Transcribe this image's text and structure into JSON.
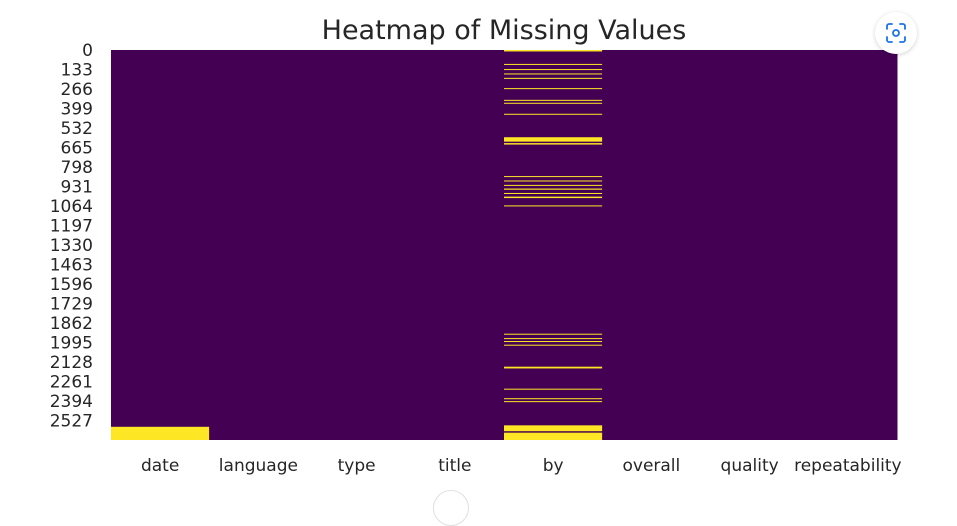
{
  "chart_data": {
    "type": "heatmap",
    "title": "Heatmap of Missing Values",
    "columns": [
      "date",
      "language",
      "type",
      "title",
      "by",
      "overall",
      "quality",
      "repeatability"
    ],
    "y_ticks": [
      "0",
      "133",
      "266",
      "399",
      "532",
      "665",
      "798",
      "931",
      "1064",
      "1197",
      "1330",
      "1463",
      "1596",
      "1729",
      "1862",
      "1995",
      "2128",
      "2261",
      "2394",
      "2527"
    ],
    "n_rows": 2660,
    "colors": {
      "present": "#440154",
      "missing": "#fde725"
    },
    "missing_ranges": {
      "date": [
        [
          2570,
          2660
        ]
      ],
      "by": [
        [
          0,
          10
        ],
        [
          95,
          100
        ],
        [
          130,
          135
        ],
        [
          160,
          166
        ],
        [
          190,
          196
        ],
        [
          260,
          266
        ],
        [
          340,
          345
        ],
        [
          360,
          366
        ],
        [
          435,
          441
        ],
        [
          595,
          625
        ],
        [
          635,
          645
        ],
        [
          860,
          866
        ],
        [
          890,
          896
        ],
        [
          920,
          926
        ],
        [
          945,
          953
        ],
        [
          975,
          982
        ],
        [
          1000,
          1010
        ],
        [
          1060,
          1065
        ],
        [
          1935,
          1941
        ],
        [
          1965,
          1970
        ],
        [
          1985,
          1991
        ],
        [
          2010,
          2016
        ],
        [
          2160,
          2172
        ],
        [
          2310,
          2316
        ],
        [
          2375,
          2381
        ],
        [
          2395,
          2400
        ],
        [
          2560,
          2600
        ],
        [
          2610,
          2660
        ]
      ]
    }
  },
  "toolbar": {
    "focus_icon": "focus-scan-icon"
  }
}
